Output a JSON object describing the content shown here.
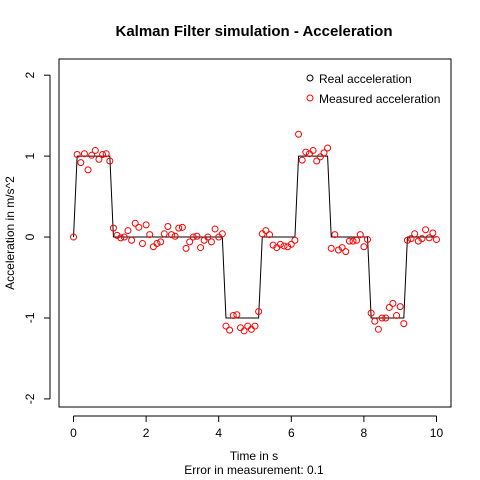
{
  "chart_data": {
    "type": "line",
    "title": "Kalman Filter simulation - Acceleration",
    "xlabel": "Time in s",
    "xlabel_sub": "Error in measurement: 0.1",
    "ylabel": "Acceleration in m/s^2",
    "xlim": [
      -0.4,
      10.4
    ],
    "ylim": [
      -2.1,
      2.2
    ],
    "xticks": [
      0,
      2,
      4,
      6,
      8,
      10
    ],
    "yticks": [
      -2,
      -1,
      0,
      1,
      2
    ],
    "grid": false,
    "legend_position": "top-right",
    "legend": [
      {
        "label": "Real acceleration",
        "color": "#000000",
        "marker": "open-circle"
      },
      {
        "label": "Measured acceleration",
        "color": "#ff0000",
        "marker": "open-circle"
      }
    ],
    "series": [
      {
        "name": "Real acceleration",
        "color": "#000000",
        "style": "line",
        "points": [
          [
            0.0,
            0
          ],
          [
            0.1,
            1
          ],
          [
            1.0,
            1
          ],
          [
            1.1,
            0
          ],
          [
            4.1,
            0
          ],
          [
            4.2,
            -1
          ],
          [
            5.1,
            -1
          ],
          [
            5.2,
            0
          ],
          [
            6.1,
            0
          ],
          [
            6.2,
            1
          ],
          [
            7.0,
            1
          ],
          [
            7.1,
            0
          ],
          [
            8.1,
            0
          ],
          [
            8.2,
            -1
          ],
          [
            9.1,
            -1
          ],
          [
            9.2,
            0
          ],
          [
            10.0,
            0
          ]
        ]
      },
      {
        "name": "Measured acceleration",
        "color": "#ff0000",
        "style": "open-circle",
        "points": [
          [
            0.0,
            0.0
          ],
          [
            0.1,
            1.02
          ],
          [
            0.2,
            0.92
          ],
          [
            0.3,
            1.03
          ],
          [
            0.4,
            0.83
          ],
          [
            0.5,
            1.01
          ],
          [
            0.6,
            1.07
          ],
          [
            0.7,
            0.96
          ],
          [
            0.8,
            1.02
          ],
          [
            0.9,
            1.03
          ],
          [
            1.0,
            0.94
          ],
          [
            1.1,
            0.11
          ],
          [
            1.2,
            0.02
          ],
          [
            1.3,
            -0.01
          ],
          [
            1.4,
            0.0
          ],
          [
            1.5,
            0.08
          ],
          [
            1.6,
            -0.04
          ],
          [
            1.7,
            0.17
          ],
          [
            1.8,
            0.12
          ],
          [
            1.9,
            -0.08
          ],
          [
            2.0,
            0.15
          ],
          [
            2.1,
            0.03
          ],
          [
            2.2,
            -0.12
          ],
          [
            2.3,
            -0.08
          ],
          [
            2.4,
            -0.06
          ],
          [
            2.5,
            0.04
          ],
          [
            2.6,
            0.13
          ],
          [
            2.7,
            0.03
          ],
          [
            2.8,
            0.01
          ],
          [
            2.9,
            0.11
          ],
          [
            3.0,
            0.12
          ],
          [
            3.1,
            -0.14
          ],
          [
            3.2,
            -0.06
          ],
          [
            3.3,
            0.0
          ],
          [
            3.4,
            0.01
          ],
          [
            3.5,
            -0.13
          ],
          [
            3.6,
            -0.04
          ],
          [
            3.7,
            0.0
          ],
          [
            3.8,
            -0.06
          ],
          [
            3.9,
            0.1
          ],
          [
            4.0,
            0.0
          ],
          [
            4.1,
            0.04
          ],
          [
            4.2,
            -1.1
          ],
          [
            4.3,
            -1.15
          ],
          [
            4.4,
            -0.97
          ],
          [
            4.5,
            -0.96
          ],
          [
            4.6,
            -1.12
          ],
          [
            4.7,
            -1.16
          ],
          [
            4.8,
            -1.1
          ],
          [
            4.9,
            -1.14
          ],
          [
            5.0,
            -1.1
          ],
          [
            5.1,
            -0.92
          ],
          [
            5.2,
            0.04
          ],
          [
            5.3,
            0.08
          ],
          [
            5.4,
            0.03
          ],
          [
            5.5,
            -0.1
          ],
          [
            5.6,
            -0.13
          ],
          [
            5.7,
            -0.09
          ],
          [
            5.8,
            -0.11
          ],
          [
            5.9,
            -0.12
          ],
          [
            6.0,
            -0.09
          ],
          [
            6.1,
            -0.04
          ],
          [
            6.2,
            1.27
          ],
          [
            6.3,
            0.95
          ],
          [
            6.4,
            1.05
          ],
          [
            6.5,
            1.03
          ],
          [
            6.6,
            1.07
          ],
          [
            6.7,
            0.94
          ],
          [
            6.8,
            0.99
          ],
          [
            6.9,
            1.04
          ],
          [
            7.0,
            1.1
          ],
          [
            7.1,
            -0.14
          ],
          [
            7.2,
            0.03
          ],
          [
            7.3,
            -0.16
          ],
          [
            7.4,
            -0.13
          ],
          [
            7.5,
            -0.18
          ],
          [
            7.6,
            -0.05
          ],
          [
            7.7,
            -0.05
          ],
          [
            7.8,
            -0.04
          ],
          [
            7.9,
            0.03
          ],
          [
            8.0,
            -0.12
          ],
          [
            8.1,
            -0.03
          ],
          [
            8.2,
            -0.94
          ],
          [
            8.3,
            -1.04
          ],
          [
            8.4,
            -1.14
          ],
          [
            8.5,
            -1.0
          ],
          [
            8.6,
            -1.0
          ],
          [
            8.7,
            -0.87
          ],
          [
            8.8,
            -0.82
          ],
          [
            8.9,
            -0.97
          ],
          [
            9.0,
            -0.86
          ],
          [
            9.1,
            -1.07
          ],
          [
            9.2,
            -0.04
          ],
          [
            9.3,
            -0.02
          ],
          [
            9.4,
            0.04
          ],
          [
            9.5,
            -0.05
          ],
          [
            9.6,
            -0.02
          ],
          [
            9.7,
            0.09
          ],
          [
            9.8,
            -0.01
          ],
          [
            9.9,
            0.05
          ],
          [
            10.0,
            -0.03
          ]
        ]
      }
    ]
  }
}
